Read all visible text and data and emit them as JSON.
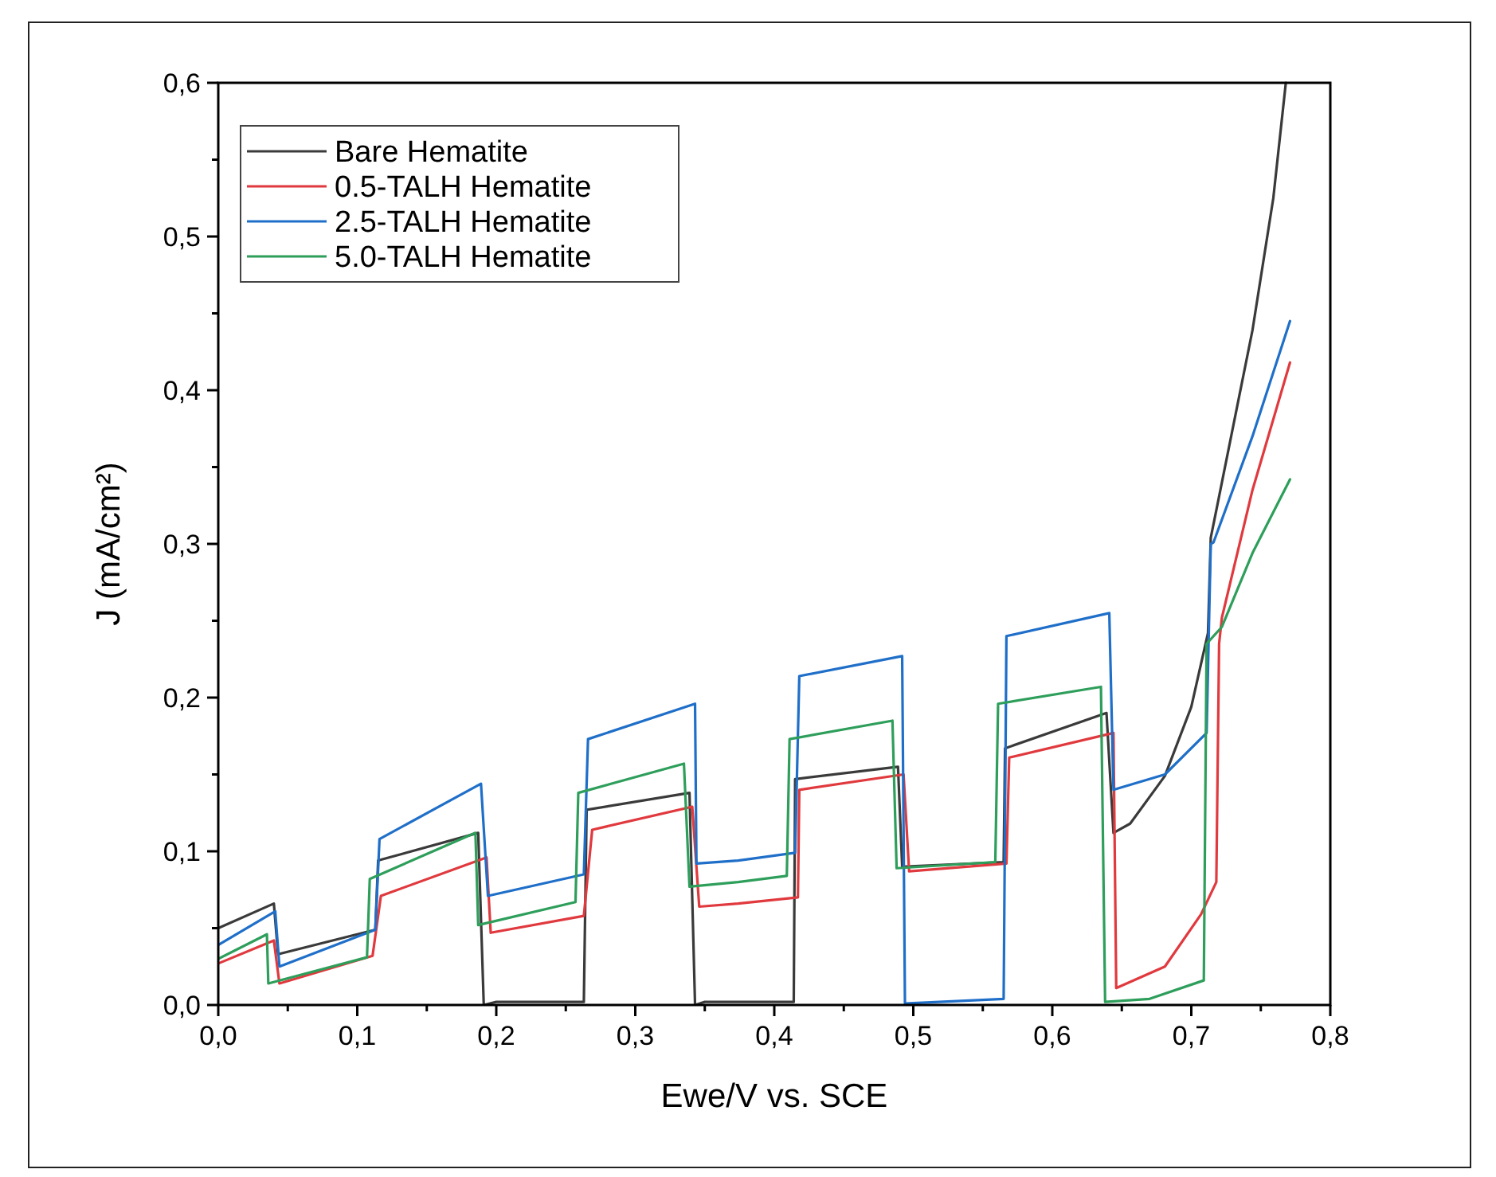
{
  "chart_data": {
    "type": "line",
    "xlabel": "Ewe/V vs. SCE",
    "ylabel": "J (mA/cm²)",
    "xlim": [
      0,
      0.8
    ],
    "ylim": [
      0,
      0.6
    ],
    "xticks": [
      {
        "value": 0,
        "label": "0,0"
      },
      {
        "value": 0.05,
        "label": null
      },
      {
        "value": 0.1,
        "label": "0,1"
      },
      {
        "value": 0.15,
        "label": null
      },
      {
        "value": 0.2,
        "label": "0,2"
      },
      {
        "value": 0.25,
        "label": null
      },
      {
        "value": 0.3,
        "label": "0,3"
      },
      {
        "value": 0.35,
        "label": null
      },
      {
        "value": 0.4,
        "label": "0,4"
      },
      {
        "value": 0.45,
        "label": null
      },
      {
        "value": 0.5,
        "label": "0,5"
      },
      {
        "value": 0.55,
        "label": null
      },
      {
        "value": 0.6,
        "label": "0,6"
      },
      {
        "value": 0.65,
        "label": null
      },
      {
        "value": 0.7,
        "label": "0,7"
      },
      {
        "value": 0.75,
        "label": null
      },
      {
        "value": 0.8,
        "label": "0,8"
      }
    ],
    "yticks": [
      {
        "value": 0,
        "label": "0,0"
      },
      {
        "value": 0.05,
        "label": null
      },
      {
        "value": 0.1,
        "label": "0,1"
      },
      {
        "value": 0.15,
        "label": null
      },
      {
        "value": 0.2,
        "label": "0,2"
      },
      {
        "value": 0.25,
        "label": null
      },
      {
        "value": 0.3,
        "label": "0,3"
      },
      {
        "value": 0.35,
        "label": null
      },
      {
        "value": 0.4,
        "label": "0,4"
      },
      {
        "value": 0.45,
        "label": null
      },
      {
        "value": 0.5,
        "label": "0,5"
      },
      {
        "value": 0.55,
        "label": null
      },
      {
        "value": 0.6,
        "label": "0,6"
      }
    ],
    "grid": false,
    "legend": "top left",
    "marker": "none",
    "line_style": "solid",
    "series": [
      {
        "name": "Bare Hematite",
        "color": "#3a3a3a",
        "x": [
          0,
          0.04,
          0.043,
          0.113,
          0.115,
          0.187,
          0.191,
          0.2,
          0.263,
          0.265,
          0.339,
          0.343,
          0.35,
          0.414,
          0.415,
          0.489,
          0.492,
          0.565,
          0.566,
          0.639,
          0.644,
          0.656,
          0.681,
          0.7,
          0.712,
          0.714,
          0.744,
          0.759,
          0.768
        ],
        "values": [
          0.05,
          0.066,
          0.033,
          0.049,
          0.094,
          0.112,
          0,
          0.002,
          0.002,
          0.127,
          0.138,
          0,
          0.002,
          0.002,
          0.147,
          0.155,
          0.09,
          0.093,
          0.167,
          0.19,
          0.112,
          0.118,
          0.149,
          0.194,
          0.242,
          0.304,
          0.439,
          0.525,
          0.6
        ]
      },
      {
        "name": "0.5-TALH Hematite",
        "color": "#e0393e",
        "x": [
          0,
          0.04,
          0.044,
          0.111,
          0.117,
          0.193,
          0.196,
          0.263,
          0.269,
          0.341,
          0.346,
          0.374,
          0.417,
          0.418,
          0.493,
          0.497,
          0.567,
          0.569,
          0.644,
          0.646,
          0.681,
          0.707,
          0.718,
          0.72,
          0.722,
          0.744,
          0.771
        ],
        "values": [
          0.027,
          0.042,
          0.014,
          0.032,
          0.071,
          0.096,
          0.047,
          0.058,
          0.114,
          0.129,
          0.064,
          0.066,
          0.07,
          0.14,
          0.15,
          0.087,
          0.092,
          0.161,
          0.177,
          0.011,
          0.025,
          0.059,
          0.08,
          0.235,
          0.252,
          0.335,
          0.418
        ]
      },
      {
        "name": "2.5-TALH Hematite",
        "color": "#1f6fc9",
        "x": [
          0,
          0.041,
          0.044,
          0.113,
          0.116,
          0.189,
          0.194,
          0.263,
          0.266,
          0.343,
          0.344,
          0.374,
          0.415,
          0.418,
          0.492,
          0.494,
          0.565,
          0.567,
          0.641,
          0.644,
          0.681,
          0.711,
          0.714,
          0.716,
          0.744,
          0.771
        ],
        "values": [
          0.039,
          0.061,
          0.025,
          0.049,
          0.108,
          0.144,
          0.071,
          0.085,
          0.173,
          0.196,
          0.092,
          0.094,
          0.099,
          0.214,
          0.227,
          0.001,
          0.004,
          0.24,
          0.255,
          0.14,
          0.15,
          0.177,
          0.3,
          0.301,
          0.37,
          0.445
        ]
      },
      {
        "name": "5.0-TALH Hematite",
        "color": "#2e9e5b",
        "x": [
          0,
          0.035,
          0.036,
          0.107,
          0.109,
          0.185,
          0.187,
          0.257,
          0.259,
          0.335,
          0.339,
          0.374,
          0.409,
          0.411,
          0.485,
          0.488,
          0.559,
          0.561,
          0.635,
          0.638,
          0.67,
          0.709,
          0.711,
          0.722,
          0.744,
          0.771
        ],
        "values": [
          0.03,
          0.046,
          0.014,
          0.031,
          0.082,
          0.112,
          0.052,
          0.067,
          0.138,
          0.157,
          0.077,
          0.08,
          0.084,
          0.173,
          0.185,
          0.089,
          0.093,
          0.196,
          0.207,
          0.002,
          0.004,
          0.016,
          0.235,
          0.246,
          0.294,
          0.342
        ]
      }
    ]
  }
}
